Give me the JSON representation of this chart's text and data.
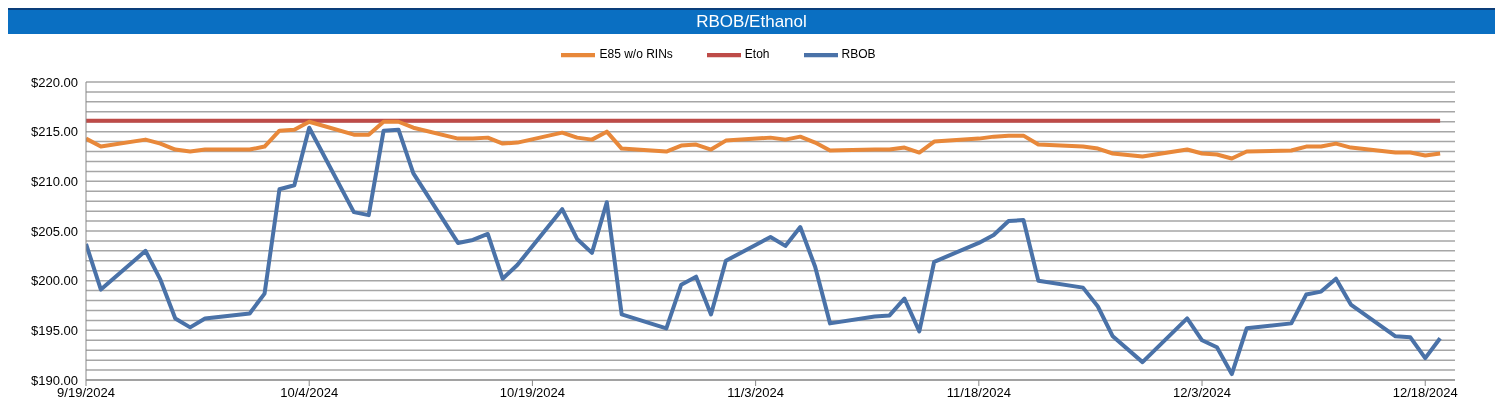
{
  "chart_data": {
    "type": "line",
    "title": "RBOB/Ethanol",
    "x": [
      "2024-09-19",
      "2024-09-20",
      "2024-09-23",
      "2024-09-24",
      "2024-09-25",
      "2024-09-26",
      "2024-09-27",
      "2024-09-30",
      "2024-10-01",
      "2024-10-02",
      "2024-10-03",
      "2024-10-04",
      "2024-10-07",
      "2024-10-08",
      "2024-10-09",
      "2024-10-10",
      "2024-10-11",
      "2024-10-14",
      "2024-10-15",
      "2024-10-16",
      "2024-10-17",
      "2024-10-18",
      "2024-10-21",
      "2024-10-22",
      "2024-10-23",
      "2024-10-24",
      "2024-10-25",
      "2024-10-28",
      "2024-10-29",
      "2024-10-30",
      "2024-10-31",
      "2024-11-01",
      "2024-11-04",
      "2024-11-05",
      "2024-11-06",
      "2024-11-07",
      "2024-11-08",
      "2024-11-11",
      "2024-11-12",
      "2024-11-13",
      "2024-11-14",
      "2024-11-15",
      "2024-11-18",
      "2024-11-19",
      "2024-11-20",
      "2024-11-21",
      "2024-11-22",
      "2024-11-25",
      "2024-11-26",
      "2024-11-27",
      "2024-11-29",
      "2024-12-02",
      "2024-12-03",
      "2024-12-04",
      "2024-12-05",
      "2024-12-06",
      "2024-12-09",
      "2024-12-10",
      "2024-12-11",
      "2024-12-12",
      "2024-12-13",
      "2024-12-16",
      "2024-12-17",
      "2024-12-18",
      "2024-12-19"
    ],
    "series": [
      {
        "name": "RBOB",
        "color": "#4a72a8",
        "values": [
          203.7,
          199.1,
          203.0,
          200.1,
          196.2,
          195.3,
          196.2,
          196.7,
          198.7,
          209.2,
          209.6,
          215.4,
          206.9,
          206.6,
          215.1,
          215.2,
          210.8,
          203.8,
          204.1,
          204.7,
          200.2,
          201.6,
          207.2,
          204.2,
          202.8,
          207.9,
          196.6,
          195.2,
          199.6,
          200.4,
          196.6,
          202.0,
          204.4,
          203.5,
          205.4,
          201.4,
          195.7,
          196.4,
          196.5,
          198.2,
          194.9,
          201.9,
          203.8,
          204.6,
          206.0,
          206.1,
          200.0,
          199.3,
          197.4,
          194.4,
          191.8,
          196.2,
          194.0,
          193.3,
          190.6,
          195.2,
          195.7,
          198.6,
          198.9,
          200.2,
          197.6,
          194.4,
          194.3,
          192.2,
          194.2
        ]
      },
      {
        "name": "Etoh",
        "color": "#be4b48",
        "values": [
          216.1,
          216.1,
          216.1,
          216.1,
          216.1,
          216.1,
          216.1,
          216.1,
          216.1,
          216.1,
          216.1,
          216.1,
          216.1,
          216.1,
          216.1,
          216.1,
          216.1,
          216.1,
          216.1,
          216.1,
          216.1,
          216.1,
          216.1,
          216.1,
          216.1,
          216.1,
          216.1,
          216.1,
          216.1,
          216.1,
          216.1,
          216.1,
          216.1,
          216.1,
          216.1,
          216.1,
          216.1,
          216.1,
          216.1,
          216.1,
          216.1,
          216.1,
          216.1,
          216.1,
          216.1,
          216.1,
          216.1,
          216.1,
          216.1,
          216.1,
          216.1,
          216.1,
          216.1,
          216.1,
          216.1,
          216.1,
          216.1,
          216.1,
          216.1,
          216.1,
          216.1,
          216.1,
          216.1,
          216.1,
          216.1
        ]
      },
      {
        "name": "E85 w/o RINs",
        "color": "#e8883a",
        "values": [
          214.3,
          213.5,
          214.2,
          213.8,
          213.2,
          213.0,
          213.2,
          213.2,
          213.5,
          215.1,
          215.2,
          216.0,
          214.7,
          214.7,
          216.0,
          216.0,
          215.4,
          214.3,
          214.3,
          214.4,
          213.8,
          213.9,
          214.9,
          214.4,
          214.2,
          215.0,
          213.3,
          213.0,
          213.6,
          213.7,
          213.2,
          214.1,
          214.4,
          214.2,
          214.5,
          213.9,
          213.1,
          213.2,
          213.2,
          213.4,
          212.9,
          214.0,
          214.3,
          214.5,
          214.6,
          214.6,
          213.7,
          213.5,
          213.3,
          212.8,
          212.5,
          213.2,
          212.8,
          212.7,
          212.3,
          213.0,
          213.1,
          213.5,
          213.5,
          213.8,
          213.4,
          212.9,
          212.9,
          212.6,
          212.8
        ]
      }
    ],
    "xlim": [
      "2024-09-19",
      "2024-12-20"
    ],
    "xticks": [
      {
        "value": "2024-09-19",
        "label": "9/19/2024"
      },
      {
        "value": "2024-10-04",
        "label": "10/4/2024"
      },
      {
        "value": "2024-10-19",
        "label": "10/19/2024"
      },
      {
        "value": "2024-11-03",
        "label": "11/3/2024"
      },
      {
        "value": "2024-11-18",
        "label": "11/18/2024"
      },
      {
        "value": "2024-12-03",
        "label": "12/3/2024"
      },
      {
        "value": "2024-12-18",
        "label": "12/18/2024"
      }
    ],
    "ylim": [
      190,
      220
    ],
    "yticks": [
      {
        "value": 190,
        "label": "$190.00"
      },
      {
        "value": 191,
        "label": null
      },
      {
        "value": 192,
        "label": null
      },
      {
        "value": 193,
        "label": null
      },
      {
        "value": 194,
        "label": null
      },
      {
        "value": 195,
        "label": "$195.00"
      },
      {
        "value": 196,
        "label": null
      },
      {
        "value": 197,
        "label": null
      },
      {
        "value": 198,
        "label": null
      },
      {
        "value": 199,
        "label": null
      },
      {
        "value": 200,
        "label": "$200.00"
      },
      {
        "value": 201,
        "label": null
      },
      {
        "value": 202,
        "label": null
      },
      {
        "value": 203,
        "label": null
      },
      {
        "value": 204,
        "label": null
      },
      {
        "value": 205,
        "label": "$205.00"
      },
      {
        "value": 206,
        "label": null
      },
      {
        "value": 207,
        "label": null
      },
      {
        "value": 208,
        "label": null
      },
      {
        "value": 209,
        "label": null
      },
      {
        "value": 210,
        "label": "$210.00"
      },
      {
        "value": 211,
        "label": null
      },
      {
        "value": 212,
        "label": null
      },
      {
        "value": 213,
        "label": null
      },
      {
        "value": 214,
        "label": null
      },
      {
        "value": 215,
        "label": "$215.00"
      },
      {
        "value": 216,
        "label": null
      },
      {
        "value": 217,
        "label": null
      },
      {
        "value": 218,
        "label": null
      },
      {
        "value": 219,
        "label": null
      },
      {
        "value": 220,
        "label": "$220.00"
      }
    ],
    "grid": "y",
    "legend": "top"
  }
}
